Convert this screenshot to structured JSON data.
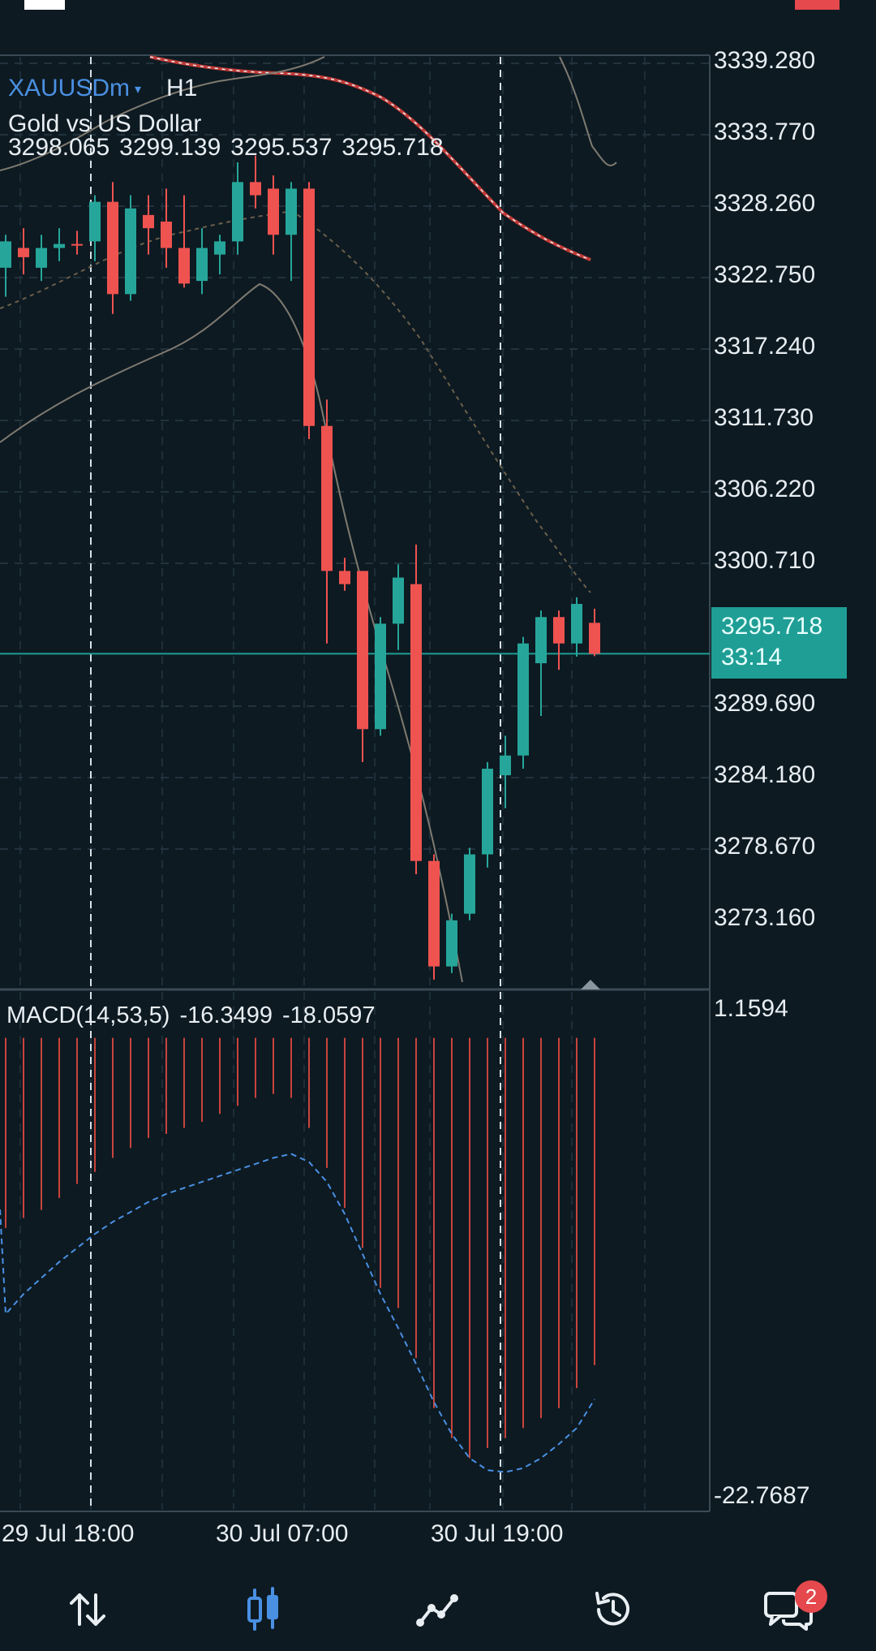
{
  "header": {
    "symbol": "XAUUSDm",
    "timeframe": "H1",
    "description": "Gold vs US Dollar",
    "ohlc": [
      "3298.065",
      "3299.139",
      "3295.537",
      "3295.718"
    ]
  },
  "price_axis": {
    "labels": [
      "3339.280",
      "3333.770",
      "3328.260",
      "3322.750",
      "3317.240",
      "3311.730",
      "3306.220",
      "3300.710",
      "3289.690",
      "3284.180",
      "3278.670",
      "3273.160"
    ]
  },
  "current_price": {
    "price": "3295.718",
    "countdown": "33:14"
  },
  "macd": {
    "legend": "MACD(14,53,5)",
    "main": "-16.3499",
    "signal": "-18.0597",
    "axis_top": "1.1594",
    "axis_bottom": "-22.7687"
  },
  "time_axis": {
    "labels": [
      "29 Jul 18:00",
      "30 Jul 07:00",
      "30 Jul 19:00"
    ]
  },
  "bottom_nav": {
    "items": [
      {
        "name": "quotes",
        "icon": "arrows-up-down-icon"
      },
      {
        "name": "chart",
        "icon": "candlestick-icon",
        "active": true
      },
      {
        "name": "trade",
        "icon": "trend-line-icon"
      },
      {
        "name": "history",
        "icon": "history-icon"
      },
      {
        "name": "messages",
        "icon": "chat-bubbles-icon",
        "badge": "2"
      }
    ]
  },
  "colors": {
    "background": "#0d1a22",
    "bullish": "#26a69a",
    "bearish": "#ef5350",
    "accent": "#4a90e2",
    "current_price": "#1f9e95"
  },
  "chart_data": {
    "type": "candlestick",
    "symbol": "XAUUSDm",
    "timeframe": "H1",
    "price_range": [
      3270.5,
      3341
    ],
    "candles": [
      {
        "o": 3325.0,
        "h": 3327.5,
        "l": 3322.8,
        "c": 3327.0
      },
      {
        "o": 3326.5,
        "h": 3328.0,
        "l": 3324.5,
        "c": 3325.8
      },
      {
        "o": 3325.0,
        "h": 3327.5,
        "l": 3324.0,
        "c": 3326.5
      },
      {
        "o": 3326.5,
        "h": 3328.0,
        "l": 3325.5,
        "c": 3326.8
      },
      {
        "o": 3326.8,
        "h": 3327.8,
        "l": 3326.0,
        "c": 3326.7
      },
      {
        "o": 3327.0,
        "h": 3330.5,
        "l": 3325.5,
        "c": 3330.0
      },
      {
        "o": 3330.0,
        "h": 3331.5,
        "l": 3321.5,
        "c": 3323.0
      },
      {
        "o": 3323.0,
        "h": 3330.5,
        "l": 3322.5,
        "c": 3329.5
      },
      {
        "o": 3329.0,
        "h": 3330.5,
        "l": 3326.0,
        "c": 3328.0
      },
      {
        "o": 3328.5,
        "h": 3331.0,
        "l": 3325.0,
        "c": 3326.5
      },
      {
        "o": 3326.5,
        "h": 3330.5,
        "l": 3323.5,
        "c": 3323.8
      },
      {
        "o": 3324.0,
        "h": 3328.0,
        "l": 3323.0,
        "c": 3326.5
      },
      {
        "o": 3326.0,
        "h": 3327.5,
        "l": 3324.5,
        "c": 3327.0
      },
      {
        "o": 3327.0,
        "h": 3333.0,
        "l": 3326.0,
        "c": 3331.5
      },
      {
        "o": 3331.5,
        "h": 3333.5,
        "l": 3329.5,
        "c": 3330.5
      },
      {
        "o": 3331.0,
        "h": 3332.0,
        "l": 3326.0,
        "c": 3327.5
      },
      {
        "o": 3327.5,
        "h": 3331.5,
        "l": 3324.0,
        "c": 3331.0
      },
      {
        "o": 3331.0,
        "h": 3331.5,
        "l": 3312.0,
        "c": 3313.0
      },
      {
        "o": 3313.0,
        "h": 3315.0,
        "l": 3296.5,
        "c": 3302.0
      },
      {
        "o": 3302.0,
        "h": 3303.0,
        "l": 3300.5,
        "c": 3301.0
      },
      {
        "o": 3302.0,
        "h": 3302.0,
        "l": 3287.5,
        "c": 3290.0
      },
      {
        "o": 3290.0,
        "h": 3298.5,
        "l": 3289.5,
        "c": 3298.0
      },
      {
        "o": 3298.0,
        "h": 3302.5,
        "l": 3296.0,
        "c": 3301.5
      },
      {
        "o": 3301.0,
        "h": 3304.0,
        "l": 3279.0,
        "c": 3280.0
      },
      {
        "o": 3280.0,
        "h": 3280.5,
        "l": 3271.0,
        "c": 3272.0
      },
      {
        "o": 3272.0,
        "h": 3276.0,
        "l": 3271.5,
        "c": 3275.5
      },
      {
        "o": 3276.0,
        "h": 3281.0,
        "l": 3275.5,
        "c": 3280.5
      },
      {
        "o": 3280.5,
        "h": 3287.5,
        "l": 3279.5,
        "c": 3287.0
      },
      {
        "o": 3286.5,
        "h": 3289.5,
        "l": 3284.0,
        "c": 3288.0
      },
      {
        "o": 3288.0,
        "h": 3297.0,
        "l": 3287.0,
        "c": 3296.5
      },
      {
        "o": 3295.0,
        "h": 3299.0,
        "l": 3291.0,
        "c": 3298.5
      },
      {
        "o": 3298.5,
        "h": 3299.0,
        "l": 3294.5,
        "c": 3296.5
      },
      {
        "o": 3296.5,
        "h": 3300.0,
        "l": 3295.5,
        "c": 3299.5
      },
      {
        "o": 3298.065,
        "h": 3299.139,
        "l": 3295.537,
        "c": 3295.718
      }
    ],
    "macd": {
      "range": [
        -22.7687,
        1.1594
      ],
      "histogram": [
        -9.5,
        -9.0,
        -8.6,
        -8.0,
        -7.3,
        -6.7,
        -6.0,
        -5.5,
        -5.0,
        -4.8,
        -4.5,
        -4.2,
        -3.8,
        -3.4,
        -3.0,
        -2.8,
        -3.0,
        -4.5,
        -6.5,
        -8.5,
        -10.5,
        -12.5,
        -13.5,
        -16.0,
        -18.5,
        -20.0,
        -21.0,
        -20.5,
        -20.0,
        -19.5,
        -19.0,
        -18.5,
        -17.5,
        -16.35
      ],
      "signal": [
        -13.8,
        -12.8,
        -12.0,
        -11.2,
        -10.5,
        -9.8,
        -9.2,
        -8.7,
        -8.2,
        -7.8,
        -7.5,
        -7.2,
        -6.9,
        -6.6,
        -6.3,
        -6.0,
        -5.8,
        -6.2,
        -7.2,
        -8.8,
        -10.8,
        -12.8,
        -14.5,
        -16.3,
        -18.2,
        -19.8,
        -21.0,
        -21.6,
        -21.7,
        -21.5,
        -21.0,
        -20.3,
        -19.5,
        -18.06
      ]
    }
  }
}
